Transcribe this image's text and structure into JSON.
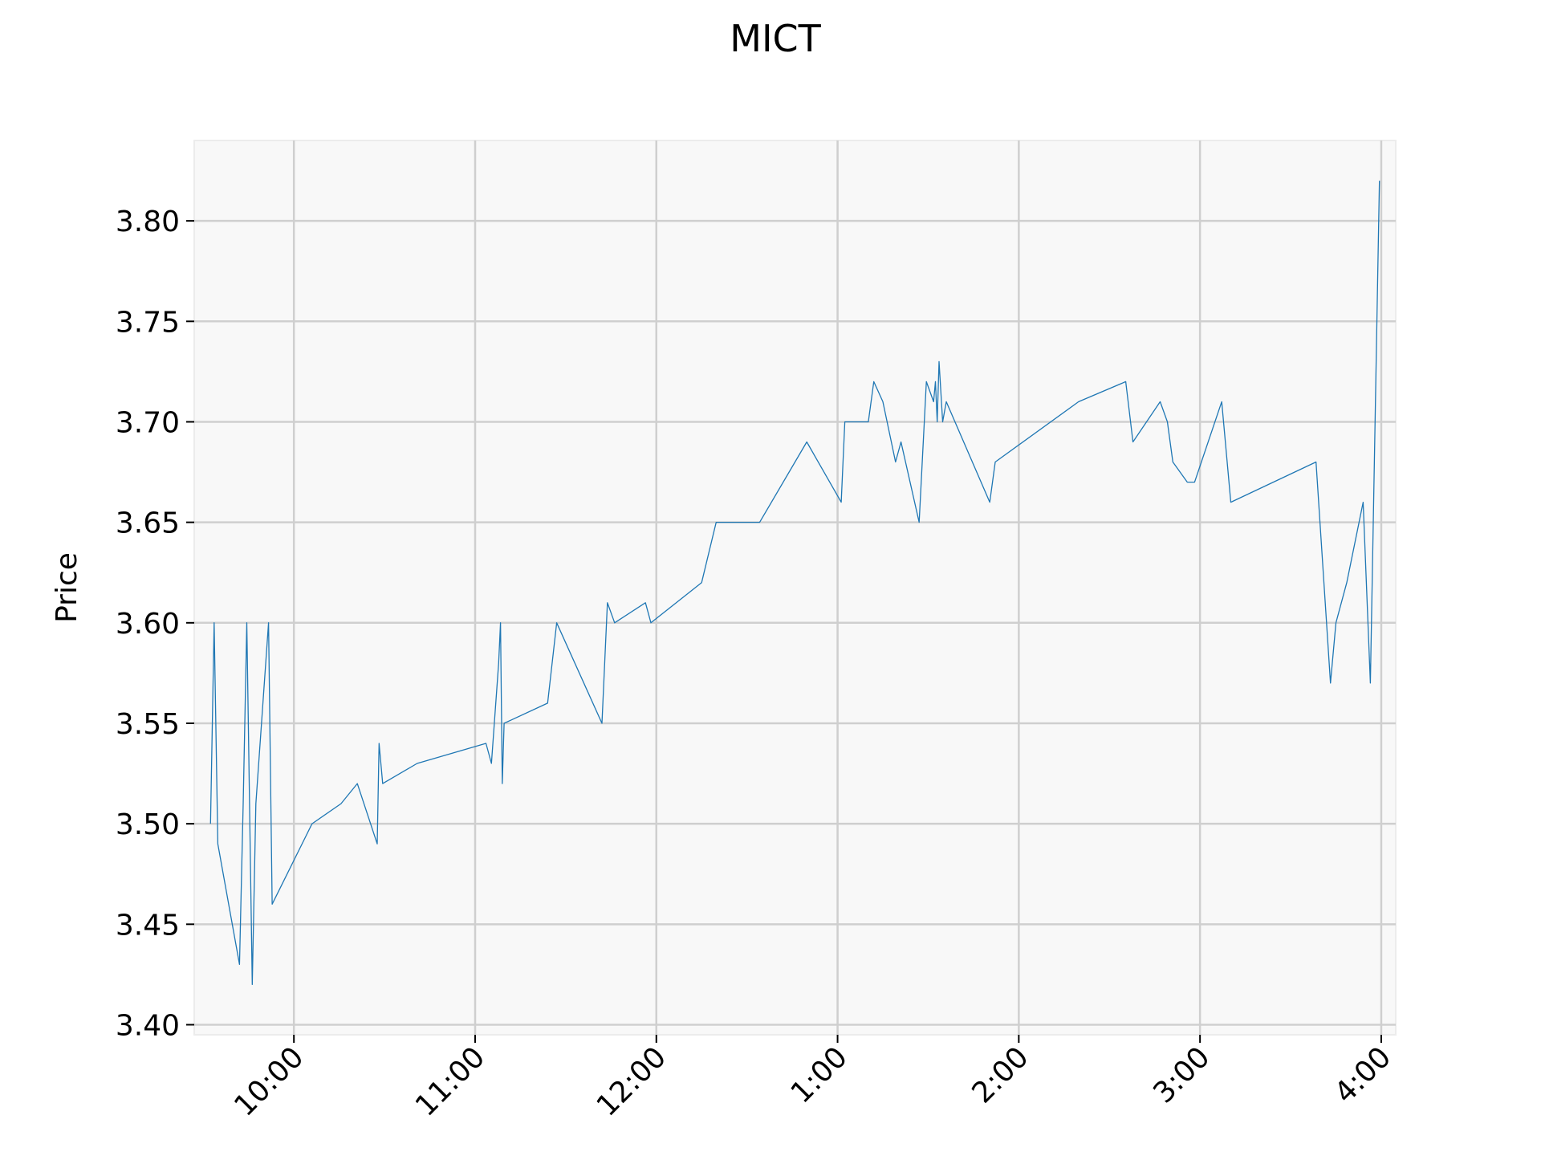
{
  "chart_data": {
    "type": "line",
    "title": "MICT",
    "xlabel": "",
    "ylabel": "Price",
    "x_tick_labels": [
      "10:00",
      "11:00",
      "12:00",
      "1:00",
      "2:00",
      "3:00",
      "4:00"
    ],
    "x_tick_hours": [
      10,
      11,
      12,
      13,
      14,
      15,
      16
    ],
    "y_tick_labels": [
      "3.40",
      "3.45",
      "3.50",
      "3.55",
      "3.60",
      "3.65",
      "3.70",
      "3.75",
      "3.80"
    ],
    "y_ticks": [
      3.4,
      3.45,
      3.5,
      3.55,
      3.6,
      3.65,
      3.7,
      3.75,
      3.8
    ],
    "xlim": [
      9.45,
      16.08
    ],
    "ylim": [
      3.395,
      3.84
    ],
    "grid": true,
    "colors": {
      "line": "#1f77b4",
      "plot_background": "#f8f8f8",
      "grid": "#cfcfcf"
    },
    "series": [
      {
        "points": [
          [
            9.54,
            3.5
          ],
          [
            9.56,
            3.6
          ],
          [
            9.58,
            3.49
          ],
          [
            9.7,
            3.43
          ],
          [
            9.72,
            3.51
          ],
          [
            9.74,
            3.6
          ],
          [
            9.77,
            3.42
          ],
          [
            9.79,
            3.51
          ],
          [
            9.86,
            3.6
          ],
          [
            9.88,
            3.46
          ],
          [
            10.1,
            3.5
          ],
          [
            10.26,
            3.51
          ],
          [
            10.35,
            3.52
          ],
          [
            10.46,
            3.49
          ],
          [
            10.47,
            3.54
          ],
          [
            10.49,
            3.52
          ],
          [
            10.68,
            3.53
          ],
          [
            11.06,
            3.54
          ],
          [
            11.09,
            3.53
          ],
          [
            11.13,
            3.58
          ],
          [
            11.14,
            3.6
          ],
          [
            11.15,
            3.52
          ],
          [
            11.16,
            3.55
          ],
          [
            11.4,
            3.56
          ],
          [
            11.45,
            3.6
          ],
          [
            11.7,
            3.55
          ],
          [
            11.73,
            3.61
          ],
          [
            11.77,
            3.6
          ],
          [
            11.94,
            3.61
          ],
          [
            11.97,
            3.6
          ],
          [
            12.25,
            3.62
          ],
          [
            12.33,
            3.65
          ],
          [
            12.57,
            3.65
          ],
          [
            12.83,
            3.69
          ],
          [
            13.02,
            3.66
          ],
          [
            13.04,
            3.7
          ],
          [
            13.17,
            3.7
          ],
          [
            13.2,
            3.72
          ],
          [
            13.25,
            3.71
          ],
          [
            13.32,
            3.68
          ],
          [
            13.35,
            3.69
          ],
          [
            13.45,
            3.65
          ],
          [
            13.49,
            3.72
          ],
          [
            13.53,
            3.71
          ],
          [
            13.54,
            3.72
          ],
          [
            13.55,
            3.7
          ],
          [
            13.56,
            3.73
          ],
          [
            13.58,
            3.7
          ],
          [
            13.6,
            3.71
          ],
          [
            13.84,
            3.66
          ],
          [
            13.87,
            3.68
          ],
          [
            14.33,
            3.71
          ],
          [
            14.59,
            3.72
          ],
          [
            14.63,
            3.69
          ],
          [
            14.78,
            3.71
          ],
          [
            14.82,
            3.7
          ],
          [
            14.85,
            3.68
          ],
          [
            14.93,
            3.67
          ],
          [
            14.97,
            3.67
          ],
          [
            15.12,
            3.71
          ],
          [
            15.17,
            3.66
          ],
          [
            15.64,
            3.68
          ],
          [
            15.72,
            3.57
          ],
          [
            15.75,
            3.6
          ],
          [
            15.81,
            3.62
          ],
          [
            15.9,
            3.66
          ],
          [
            15.94,
            3.57
          ],
          [
            15.99,
            3.82
          ]
        ]
      }
    ]
  }
}
